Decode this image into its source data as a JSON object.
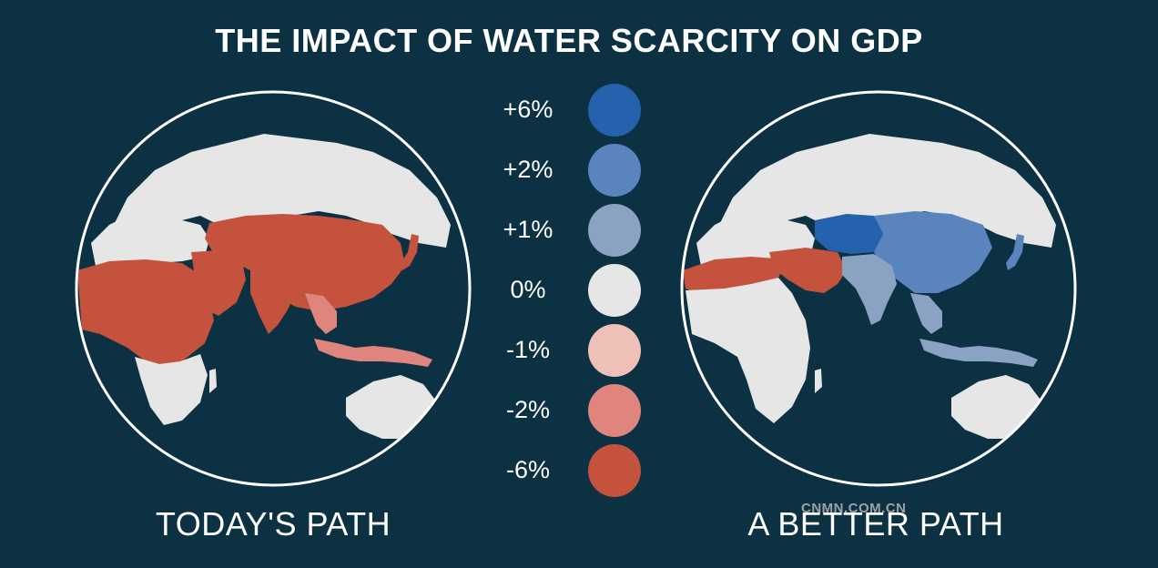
{
  "title": "THE IMPACT OF WATER SCARCITY ON GDP",
  "colors": {
    "background": "#0c3142",
    "plus6": "#2462ad",
    "plus2": "#5a84be",
    "plus1": "#8ba3c3",
    "zero": "#e6e6e6",
    "minus1": "#efc0b8",
    "minus2": "#e0857d",
    "minus6": "#c4523c"
  },
  "legend": [
    {
      "label": "+6%",
      "color": "#2462ad"
    },
    {
      "label": "+2%",
      "color": "#5a84be"
    },
    {
      "label": "+1%",
      "color": "#8ba3c3"
    },
    {
      "label": "0%",
      "color": "#e6e6e6"
    },
    {
      "label": "-1%",
      "color": "#efc0b8"
    },
    {
      "label": "-2%",
      "color": "#e0857d"
    },
    {
      "label": "-6%",
      "color": "#c4523c"
    }
  ],
  "maps": [
    {
      "caption": "TODAY'S PATH",
      "regions": {
        "north_africa": "-6%",
        "middle_east": "-6%",
        "central_asia": "-6%",
        "china": "-6%",
        "india": "-6%",
        "japan": "-6%",
        "southeast_asia": "-2%",
        "indonesia": "-2%",
        "europe": "0%",
        "russia": "0%",
        "southern_africa": "0%",
        "australia": "0%"
      }
    },
    {
      "caption": "A BETTER PATH",
      "regions": {
        "north_africa": "-6%",
        "middle_east": "-6%",
        "central_asia": "+6%",
        "china": "+2%",
        "japan": "+2%",
        "india": "+1%",
        "southeast_asia": "+1%",
        "indonesia": "+1%",
        "europe": "0%",
        "russia": "0%",
        "sub_saharan_africa": "0%",
        "australia": "0%"
      }
    }
  ],
  "watermark": "CNMN.COM.CN"
}
